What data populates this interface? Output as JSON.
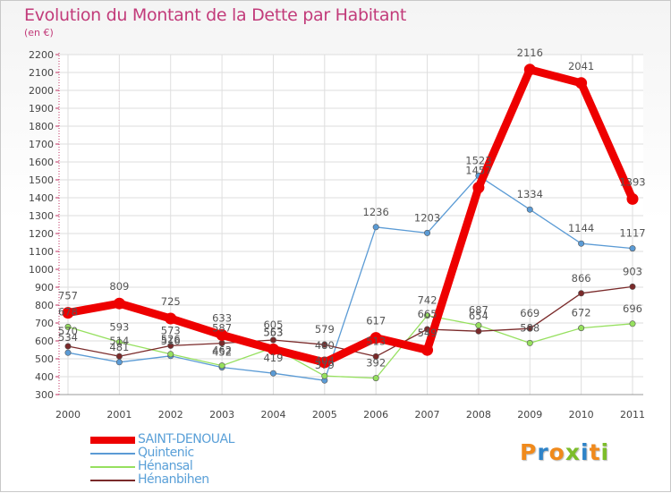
{
  "title": "Evolution du Montant de la Dette par Habitant",
  "subtitle": "(en €)",
  "logo": {
    "text": "Proxiti",
    "letters": [
      "P",
      "r",
      "o",
      "x",
      "i",
      "t",
      "i"
    ],
    "colors": [
      "#f08a1c",
      "#2e83c8",
      "#f08a1c",
      "#7cbd2a",
      "#2e83c8",
      "#f08a1c",
      "#7cbd2a"
    ]
  },
  "chart_data": {
    "type": "line",
    "title": "Evolution du Montant de la Dette par Habitant",
    "ylabel": "(en €)",
    "xlabel": "",
    "ylim": [
      300,
      2200
    ],
    "ytick_step": 100,
    "grid": true,
    "legend_position": "bottom-left",
    "x": [
      "2000",
      "2001",
      "2002",
      "2003",
      "2004",
      "2005",
      "2006",
      "2007",
      "2008",
      "2009",
      "2010",
      "2011"
    ],
    "series": [
      {
        "name": "SAINT-DENOUAL",
        "color": "#ee0000",
        "values": [
          757,
          809,
          725,
          633,
          553,
          480,
          617,
          549,
          1457,
          2116,
          2041,
          1393
        ]
      },
      {
        "name": "Quintenic",
        "color": "#5b9bd5",
        "values": [
          534,
          481,
          516,
          452,
          419,
          379,
          1236,
          1203,
          1523,
          1334,
          1144,
          1117
        ]
      },
      {
        "name": "Hénansal",
        "color": "#96e05f",
        "values": [
          678,
          593,
          526,
          462,
          563,
          404,
          392,
          742,
          687,
          588,
          672,
          696
        ]
      },
      {
        "name": "Hénanbihen",
        "color": "#7a2a2a",
        "values": [
          570,
          514,
          573,
          587,
          605,
          579,
          513,
          665,
          654,
          669,
          866,
          903
        ]
      }
    ]
  }
}
